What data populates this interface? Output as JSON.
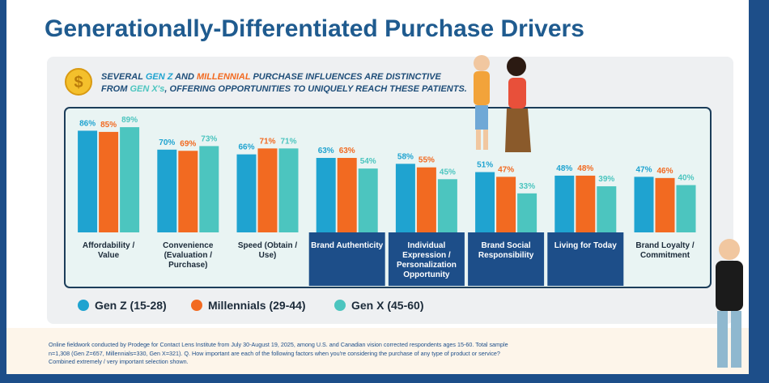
{
  "title": "Generationally-Differentiated Purchase Drivers",
  "callout": [
    [
      "SEVERAL ",
      "GEN Z",
      " AND ",
      "MILLENNIAL",
      " PURCHASE INFLUENCES ARE DISTINCTIVE"
    ],
    [
      "FROM ",
      "GEN X's",
      ", OFFERING OPPORTUNITIES TO UNIQUELY REACH THESE PATIENTS."
    ]
  ],
  "chart_data": {
    "type": "bar",
    "categories": [
      "Affordability / Value",
      "Convenience (Evaluation / Purchase)",
      "Speed (Obtain / Use)",
      "Brand Authenticity",
      "Individual Expression / Personalization Opportunity",
      "Brand Social Responsibility",
      "Living for Today",
      "Brand Loyalty / Commitment"
    ],
    "highlight": [
      false,
      false,
      false,
      true,
      true,
      true,
      true,
      false
    ],
    "ylim": [
      0,
      100
    ],
    "series": [
      {
        "name": "Gen Z (15-28)",
        "color": "#1fa3d0",
        "values": [
          86,
          70,
          66,
          63,
          58,
          51,
          48,
          47
        ],
        "value_labels": [
          "86%",
          "70%",
          "66%",
          "63%",
          "58%",
          "51%",
          "48%",
          "47%"
        ]
      },
      {
        "name": "Millennials (29-44)",
        "color": "#f26a21",
        "values": [
          85,
          69,
          71,
          63,
          55,
          47,
          48,
          46
        ],
        "value_labels": [
          "85%",
          "69%",
          "71%",
          "63%",
          "55%",
          "47%",
          "48%",
          "46%"
        ]
      },
      {
        "name": "Gen X (45-60)",
        "color": "#4cc5bf",
        "values": [
          89,
          73,
          71,
          54,
          45,
          33,
          39,
          40
        ],
        "value_labels": [
          "89%",
          "73%",
          "71%",
          "54%",
          "45%",
          "33%",
          "39%",
          "40%"
        ]
      }
    ]
  },
  "footnote": "Online fieldwork conducted by Prodege for Contact Lens Institute from July 30-August 19, 2025, among U.S. and Canadian vision corrected respondents ages 15-60. Total sample n=1,308 (Gen Z=657, Millennials=330, Gen X=321). Q. How important are each of the following factors when you're considering the purchase of any type of product or service? Combined extremely / very important selection shown."
}
